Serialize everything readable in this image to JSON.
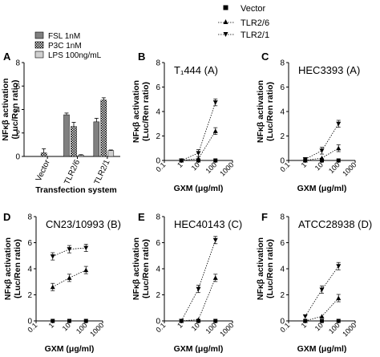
{
  "top_legend": [
    {
      "label": "Vector",
      "marker": "square"
    },
    {
      "label": "TLR2/6",
      "marker": "triangle-up"
    },
    {
      "label": "TLR2/1",
      "marker": "triangle-down"
    }
  ],
  "panel_a_legend": [
    {
      "label": "FSL 1nM",
      "fill": "#808080"
    },
    {
      "label": "P3C 1nM",
      "fill": "hatch"
    },
    {
      "label": "LPS 100ng/mL",
      "fill": "#d0d0d0"
    }
  ],
  "shared": {
    "ylabel_lines": [
      "NFκβ activation",
      "(Luc/Ren ratio)"
    ],
    "xlabel_gxm": "GXM (μg/ml)",
    "xlabel_a": "Transfection system",
    "x_ticks_log": [
      "0.1",
      "1",
      "10",
      "100",
      "1000"
    ]
  },
  "chart_data": [
    {
      "panel": "A",
      "type": "bar",
      "categories": [
        "Vector",
        "TLR2/6",
        "TLR2/1"
      ],
      "series": [
        {
          "name": "FSL 1nM",
          "values": [
            0.0,
            3.55,
            2.95
          ],
          "errors": [
            0.0,
            0.15,
            0.3
          ]
        },
        {
          "name": "P3C 1nM",
          "values": [
            0.3,
            2.55,
            4.8
          ],
          "errors": [
            0.35,
            0.35,
            0.2
          ]
        },
        {
          "name": "LPS 100ng/mL",
          "values": [
            0.0,
            0.1,
            0.5
          ],
          "errors": [
            0.0,
            0.05,
            0.05
          ]
        }
      ],
      "ylim": [
        0,
        8
      ],
      "yticks": [
        0,
        2,
        4,
        6,
        8
      ],
      "xlabel": "Transfection system",
      "ylabel": "NFκβ activation (Luc/Ren ratio)"
    },
    {
      "panel": "B",
      "type": "line",
      "title": "T₁444 (A)",
      "x": [
        1,
        10,
        100
      ],
      "series": [
        {
          "name": "Vector",
          "values": [
            0.0,
            0.0,
            0.0
          ]
        },
        {
          "name": "TLR2/6",
          "values": [
            0.0,
            0.15,
            2.4
          ]
        },
        {
          "name": "TLR2/1",
          "values": [
            0.0,
            0.6,
            4.75
          ]
        }
      ],
      "ylim": [
        0,
        8
      ],
      "yticks": [
        0,
        2,
        4,
        6,
        8
      ],
      "xlog": true,
      "xlim": [
        0.1,
        1000
      ],
      "xlabel": "GXM (μg/ml)",
      "ylabel": "NFκβ activation (Luc/Ren ratio)"
    },
    {
      "panel": "C",
      "type": "line",
      "title": "HEC3393 (A)",
      "x": [
        1,
        10,
        100
      ],
      "series": [
        {
          "name": "Vector",
          "values": [
            0.0,
            0.0,
            0.0
          ]
        },
        {
          "name": "TLR2/6",
          "values": [
            0.0,
            0.2,
            1.0
          ]
        },
        {
          "name": "TLR2/1",
          "values": [
            0.1,
            0.8,
            3.0
          ]
        }
      ],
      "ylim": [
        0,
        8
      ],
      "yticks": [
        0,
        2,
        4,
        6,
        8
      ],
      "xlog": true,
      "xlim": [
        0.1,
        1000
      ],
      "xlabel": "GXM (μg/ml)",
      "ylabel": "NFκβ activation (Luc/Ren ratio)"
    },
    {
      "panel": "D",
      "type": "line",
      "title": "CN23/10993 (B)",
      "x": [
        1,
        10,
        100
      ],
      "series": [
        {
          "name": "Vector",
          "values": [
            0.0,
            0.0,
            0.0
          ]
        },
        {
          "name": "TLR2/6",
          "values": [
            2.6,
            3.3,
            3.9
          ]
        },
        {
          "name": "TLR2/1",
          "values": [
            4.95,
            5.5,
            5.6
          ]
        }
      ],
      "ylim": [
        0,
        8
      ],
      "yticks": [
        0,
        2,
        4,
        6,
        8
      ],
      "xlog": true,
      "xlim": [
        0.1,
        1000
      ],
      "xlabel": "GXM (μg/ml)",
      "ylabel": "NFκβ activation (Luc/Ren ratio)"
    },
    {
      "panel": "E",
      "type": "line",
      "title": "HEC40143 (C)",
      "x": [
        1,
        10,
        100
      ],
      "series": [
        {
          "name": "Vector",
          "values": [
            0.0,
            0.0,
            0.0
          ]
        },
        {
          "name": "TLR2/6",
          "values": [
            0.0,
            0.1,
            3.3
          ]
        },
        {
          "name": "TLR2/1",
          "values": [
            0.0,
            2.45,
            6.2
          ]
        }
      ],
      "ylim": [
        0,
        8
      ],
      "yticks": [
        0,
        2,
        4,
        6,
        8
      ],
      "xlog": true,
      "xlim": [
        0.1,
        1000
      ],
      "xlabel": "GXM (μg/ml)",
      "ylabel": "NFκβ activation (Luc/Ren ratio)"
    },
    {
      "panel": "F",
      "type": "line",
      "title": "ATCC28938 (D)",
      "x": [
        1,
        10,
        100
      ],
      "series": [
        {
          "name": "Vector",
          "values": [
            0.0,
            0.0,
            0.0
          ]
        },
        {
          "name": "TLR2/6",
          "values": [
            0.0,
            0.35,
            1.75
          ]
        },
        {
          "name": "TLR2/1",
          "values": [
            0.35,
            2.4,
            4.2
          ]
        }
      ],
      "ylim": [
        0,
        8
      ],
      "yticks": [
        0,
        2,
        4,
        6,
        8
      ],
      "xlog": true,
      "xlim": [
        0.1,
        1000
      ],
      "xlabel": "GXM (μg/ml)",
      "ylabel": "NFκβ activation (Luc/Ren ratio)"
    }
  ]
}
